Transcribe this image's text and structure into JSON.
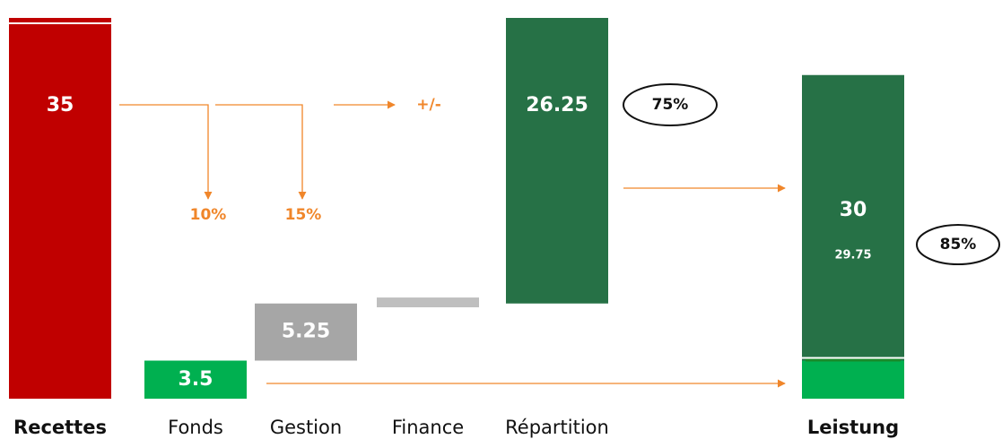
{
  "chart_data": {
    "type": "waterfall",
    "categories": [
      "Recettes",
      "Fonds",
      "Gestion",
      "Finance",
      "Répartition",
      "Leistung"
    ],
    "values": [
      35,
      3.5,
      5.25,
      0.9,
      26.25,
      29.75
    ],
    "base": [
      0,
      0,
      3.5,
      8.4,
      8.75,
      0
    ],
    "value_labels": [
      "35",
      "3.5",
      "5.25",
      null,
      "26.25",
      "30"
    ],
    "colors": [
      "#c00000",
      "#00b050",
      "#a6a6a6",
      "#bfbfbf",
      "#267146",
      "#267146"
    ],
    "overlay": {
      "category": "Leistung",
      "value": 3.5,
      "color": "#00b050"
    },
    "ylim": [
      0,
      35
    ],
    "annotations": [
      "10%",
      "15%",
      "+/-",
      "75%",
      "85%",
      "29.75"
    ]
  }
}
